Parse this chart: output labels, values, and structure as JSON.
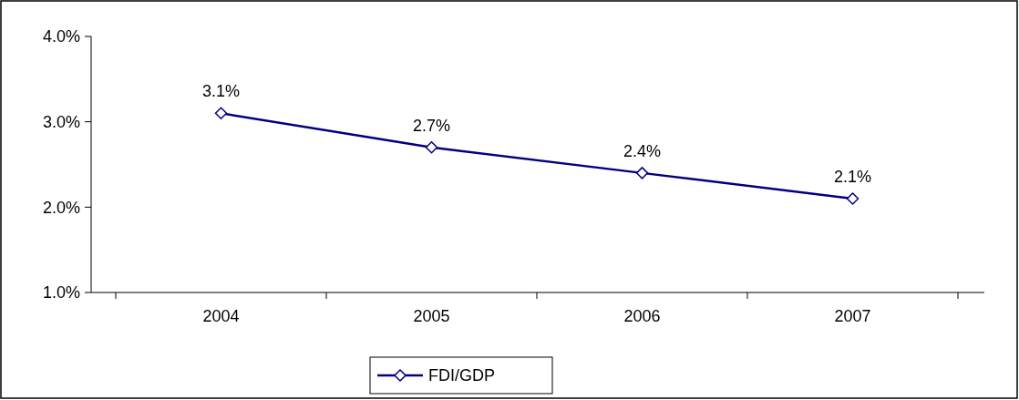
{
  "chart_data": {
    "type": "line",
    "categories": [
      "2004",
      "2005",
      "2006",
      "2007"
    ],
    "series": [
      {
        "name": "FDI/GDP",
        "color": "#000080",
        "values": [
          3.1,
          2.7,
          2.4,
          2.1
        ]
      }
    ],
    "ylim": [
      1,
      4
    ],
    "yticks": [
      {
        "value": 1,
        "label": "1.0%"
      },
      {
        "value": 2,
        "label": "2.0%"
      },
      {
        "value": 3,
        "label": "3.0%"
      },
      {
        "value": 4,
        "label": "4.0%"
      }
    ],
    "value_labels": [
      "3.1%",
      "2.7%",
      "2.4%",
      "2.1%"
    ],
    "grid": false,
    "legend": "bottom",
    "marker": "diamond",
    "line_style": "solid"
  }
}
